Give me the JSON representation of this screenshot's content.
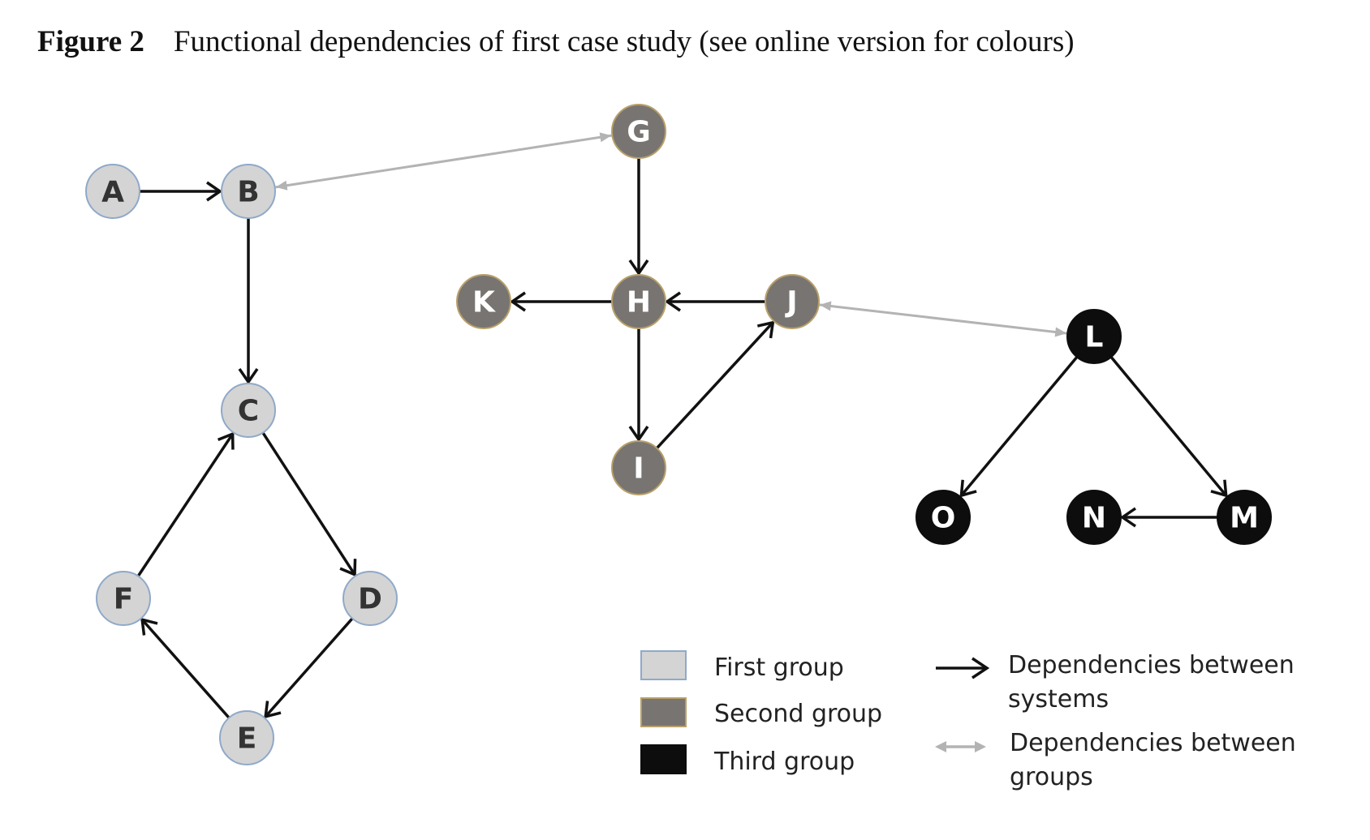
{
  "figure": {
    "label": "Figure 2",
    "caption": "Functional dependencies of first case study (see online version for colours)"
  },
  "colors": {
    "first_group": "#d4d4d4",
    "first_group_stroke": "#8fa9c9",
    "second_group": "#787471",
    "second_group_stroke": "#b8a06a",
    "third_group": "#0d0d0d",
    "system_edge": "#111111",
    "group_edge": "#b3b3b3"
  },
  "nodes": [
    {
      "id": "A",
      "group": "first"
    },
    {
      "id": "B",
      "group": "first"
    },
    {
      "id": "C",
      "group": "first"
    },
    {
      "id": "D",
      "group": "first"
    },
    {
      "id": "E",
      "group": "first"
    },
    {
      "id": "F",
      "group": "first"
    },
    {
      "id": "G",
      "group": "second"
    },
    {
      "id": "H",
      "group": "second"
    },
    {
      "id": "I",
      "group": "second"
    },
    {
      "id": "J",
      "group": "second"
    },
    {
      "id": "K",
      "group": "second"
    },
    {
      "id": "L",
      "group": "third"
    },
    {
      "id": "M",
      "group": "third"
    },
    {
      "id": "N",
      "group": "third"
    },
    {
      "id": "O",
      "group": "third"
    }
  ],
  "edges": [
    {
      "from": "A",
      "to": "B",
      "type": "system"
    },
    {
      "from": "B",
      "to": "C",
      "type": "system"
    },
    {
      "from": "C",
      "to": "D",
      "type": "system"
    },
    {
      "from": "D",
      "to": "E",
      "type": "system"
    },
    {
      "from": "E",
      "to": "F",
      "type": "system"
    },
    {
      "from": "F",
      "to": "C",
      "type": "system"
    },
    {
      "from": "G",
      "to": "H",
      "type": "system"
    },
    {
      "from": "H",
      "to": "K",
      "type": "system"
    },
    {
      "from": "J",
      "to": "H",
      "type": "system"
    },
    {
      "from": "H",
      "to": "I",
      "type": "system"
    },
    {
      "from": "I",
      "to": "J",
      "type": "system"
    },
    {
      "from": "L",
      "to": "O",
      "type": "system"
    },
    {
      "from": "L",
      "to": "M",
      "type": "system"
    },
    {
      "from": "M",
      "to": "N",
      "type": "system"
    },
    {
      "from": "B",
      "to": "G",
      "type": "group"
    },
    {
      "from": "J",
      "to": "L",
      "type": "group"
    }
  ],
  "legend": {
    "first_group": "First group",
    "second_group": "Second group",
    "third_group": "Third group",
    "system_dep_line1": "Dependencies between",
    "system_dep_line2": "systems",
    "group_dep_line1": "Dependencies between",
    "group_dep_line2": "groups"
  }
}
